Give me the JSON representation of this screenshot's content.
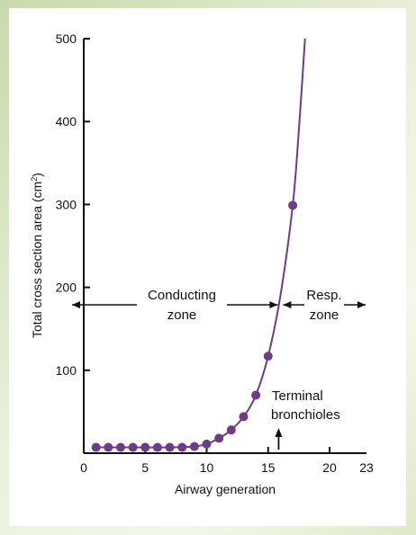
{
  "chart_data": {
    "type": "line",
    "title": "",
    "xlabel": "Airway generation",
    "ylabel": "Total cross section area (cm",
    "ylabel_sup": "2",
    "ylabel_close": ")",
    "xlim": [
      0,
      23
    ],
    "ylim": [
      0,
      500
    ],
    "x_ticks": [
      0,
      5,
      10,
      15,
      20,
      23
    ],
    "y_ticks": [
      100,
      200,
      300,
      400,
      500
    ],
    "grid": false,
    "colors": {
      "series": "#6e3b86",
      "axes": "#111111"
    },
    "series": [
      {
        "points": [
          [
            1,
            7
          ],
          [
            2,
            7
          ],
          [
            3,
            7
          ],
          [
            4,
            7
          ],
          [
            5,
            7
          ],
          [
            6,
            7
          ],
          [
            7,
            7
          ],
          [
            8,
            7
          ],
          [
            9,
            8
          ],
          [
            10,
            11
          ],
          [
            11,
            18
          ],
          [
            12,
            28
          ],
          [
            13,
            44
          ],
          [
            14,
            70
          ],
          [
            15,
            117
          ],
          [
            17,
            299
          ]
        ],
        "curve": [
          [
            1,
            7
          ],
          [
            4,
            7
          ],
          [
            7,
            7
          ],
          [
            8,
            7.5
          ],
          [
            9,
            8
          ],
          [
            10,
            11
          ],
          [
            11,
            18
          ],
          [
            12,
            28
          ],
          [
            13,
            44
          ],
          [
            14,
            70
          ],
          [
            15,
            117
          ],
          [
            16,
            190
          ],
          [
            17,
            299
          ],
          [
            17.5,
            390
          ],
          [
            18,
            500
          ]
        ]
      }
    ],
    "annotations": {
      "conducting": {
        "line1": "Conducting",
        "line2": "zone",
        "x_from": 0,
        "x_to": 16
      },
      "resp": {
        "line1": "Resp.",
        "line2": "zone",
        "x_from": 16,
        "x_to": 23
      },
      "terminal": {
        "line1": "Terminal",
        "line2": "bronchioles",
        "x": 16
      }
    }
  }
}
